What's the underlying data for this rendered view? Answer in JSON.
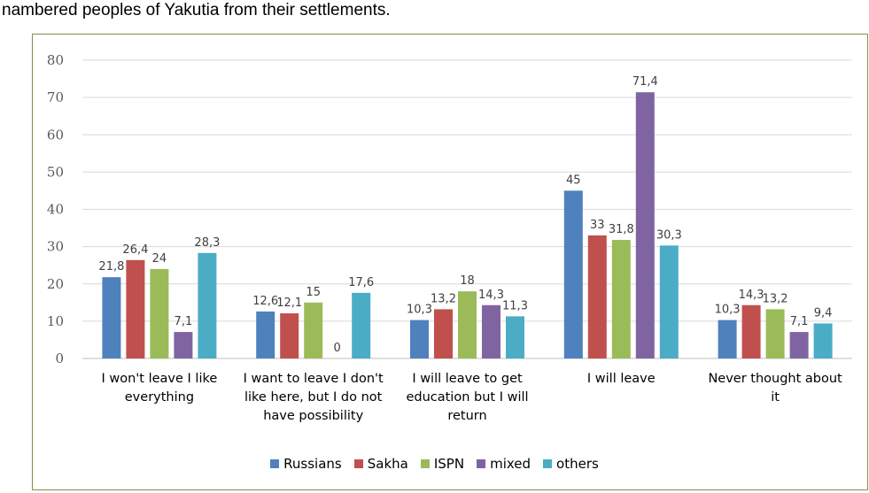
{
  "caption": "nambered peoples of Yakutia from their settlements.",
  "chart_data": {
    "type": "bar",
    "title": "",
    "xlabel": "",
    "ylabel": "",
    "ylim": [
      0,
      80
    ],
    "yticks": [
      0,
      10,
      20,
      30,
      40,
      50,
      60,
      70,
      80
    ],
    "grid": true,
    "legend_position": "bottom",
    "categories": [
      [
        "I won't leave I like",
        "everything"
      ],
      [
        "I want to leave I don't",
        "like here, but I do not",
        "have possibility"
      ],
      [
        "I will leave to get",
        "education but I will",
        "return"
      ],
      [
        "I will leave"
      ],
      [
        "Never thought about",
        "it"
      ]
    ],
    "series": [
      {
        "name": "Russians",
        "color": "#4f81bd",
        "values": [
          21.8,
          12.6,
          10.3,
          45,
          10.3
        ],
        "labels": [
          "21,8",
          "12,6",
          "10,3",
          "45",
          "10,3"
        ]
      },
      {
        "name": "Sakha",
        "color": "#c0504d",
        "values": [
          26.4,
          12.1,
          13.2,
          33,
          14.3
        ],
        "labels": [
          "26,4",
          "12,1",
          "13,2",
          "33",
          "14,3"
        ]
      },
      {
        "name": "ISPN",
        "color": "#9bbb59",
        "values": [
          24,
          15,
          18,
          31.8,
          13.2
        ],
        "labels": [
          "24",
          "15",
          "18",
          "31,8",
          "13,2"
        ]
      },
      {
        "name": "mixed",
        "color": "#8064a2",
        "values": [
          7.1,
          0,
          14.3,
          71.4,
          7.1
        ],
        "labels": [
          "7,1",
          "0",
          "14,3",
          "71,4",
          "7,1"
        ]
      },
      {
        "name": "others",
        "color": "#4bacc6",
        "values": [
          28.3,
          17.6,
          11.3,
          30.3,
          9.4
        ],
        "labels": [
          "28,3",
          "17,6",
          "11,3",
          "30,3",
          "9,4"
        ]
      }
    ]
  }
}
